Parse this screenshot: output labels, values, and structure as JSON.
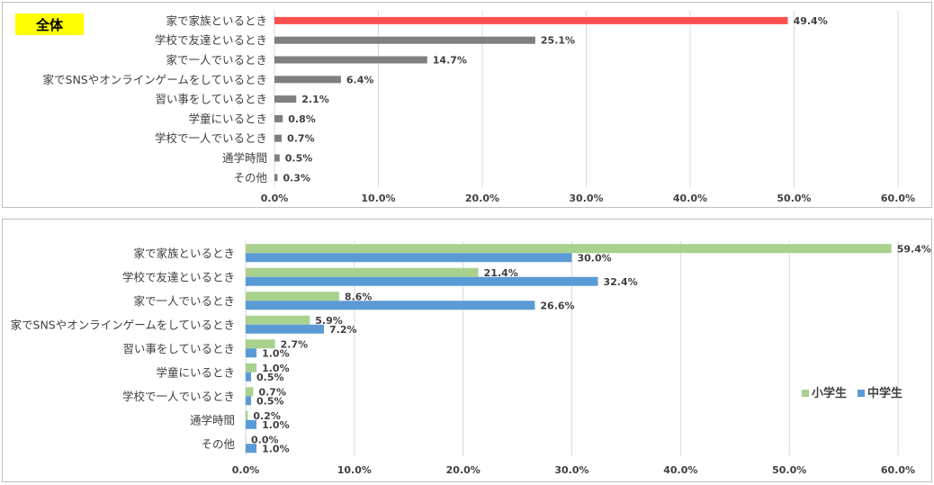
{
  "charts": [
    {
      "type": "bar",
      "orientation": "horizontal",
      "badge": "全体",
      "categories": [
        "家で家族といるとき",
        "学校で友達といるとき",
        "家で一人でいるとき",
        "家でSNSやオンラインゲームをしているとき",
        "習い事をしているとき",
        "学童にいるとき",
        "学校で一人でいるとき",
        "通学時間",
        "その他"
      ],
      "series": [
        {
          "values": [
            49.4,
            25.1,
            14.7,
            6.4,
            2.1,
            0.8,
            0.7,
            0.5,
            0.3
          ],
          "highlight_color": "#ff5050",
          "color": "#7f7f7f"
        }
      ],
      "xlim": [
        0,
        60
      ],
      "xticks": [
        "0.0%",
        "10.0%",
        "20.0%",
        "30.0%",
        "40.0%",
        "50.0%",
        "60.0%"
      ],
      "data_labels": [
        "49.4%",
        "25.1%",
        "14.7%",
        "6.4%",
        "2.1%",
        "0.8%",
        "0.7%",
        "0.5%",
        "0.3%"
      ],
      "grid": true
    },
    {
      "type": "bar",
      "orientation": "horizontal",
      "categories": [
        "家で家族といるとき",
        "学校で友達といるとき",
        "家で一人でいるとき",
        "家でSNSやオンラインゲームをしているとき",
        "習い事をしているとき",
        "学童にいるとき",
        "学校で一人でいるとき",
        "通学時間",
        "その他"
      ],
      "series": [
        {
          "name": "小学生",
          "color": "#a9d18e",
          "values": [
            59.4,
            21.4,
            8.6,
            5.9,
            2.7,
            1.0,
            0.7,
            0.2,
            0.0
          ],
          "labels": [
            "59.4%",
            "21.4%",
            "8.6%",
            "5.9%",
            "2.7%",
            "1.0%",
            "0.7%",
            "0.2%",
            "0.0%"
          ]
        },
        {
          "name": "中学生",
          "color": "#5b9bd5",
          "values": [
            30.0,
            32.4,
            26.6,
            7.2,
            1.0,
            0.5,
            0.5,
            1.0,
            1.0
          ],
          "labels": [
            "30.0%",
            "32.4%",
            "26.6%",
            "7.2%",
            "1.0%",
            "0.5%",
            "0.5%",
            "1.0%",
            "1.0%"
          ]
        }
      ],
      "xlim": [
        0,
        60
      ],
      "xticks": [
        "0.0%",
        "10.0%",
        "20.0%",
        "30.0%",
        "40.0%",
        "50.0%",
        "60.0%"
      ],
      "legend_position": "right",
      "grid": true
    }
  ]
}
